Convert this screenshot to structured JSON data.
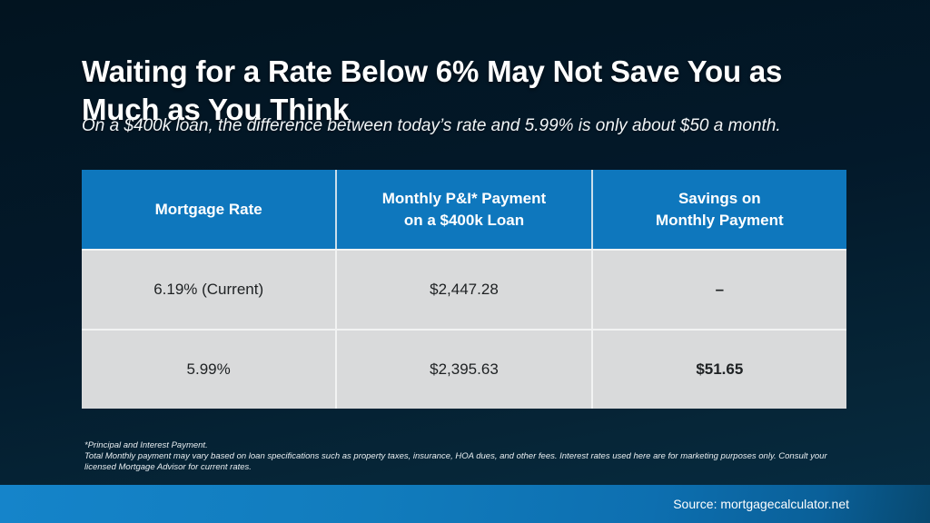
{
  "slide": {
    "title_line1": "Waiting for a Rate Below 6% May Not Save You as",
    "title_line2": "Much as You Think",
    "subtitle": "On a $400k loan, the difference between today’s rate and 5.99% is only about $50 a month."
  },
  "chart_data": {
    "type": "table",
    "title": "Waiting for a Rate Below 6% May Not Save You as Much as You Think",
    "columns": [
      "Mortgage Rate",
      "Monthly P&I* Payment on a $400k Loan",
      "Savings on Monthly Payment"
    ],
    "rows": [
      [
        "6.19% (Current)",
        "$2,447.28",
        "–"
      ],
      [
        "5.99%",
        "$2,395.63",
        "$51.65"
      ]
    ]
  },
  "table": {
    "headers": [
      "Mortgage Rate",
      "Monthly P&I* Payment\non a $400k Loan",
      "Savings on\nMonthly Payment"
    ],
    "rows": [
      [
        "6.19% (Current)",
        "$2,447.28",
        "–"
      ],
      [
        "5.99%",
        "$2,395.63",
        "$51.65"
      ]
    ]
  },
  "footnote": {
    "text": "*Principal and Interest Payment.\nTotal Monthly payment may vary based on loan specifications such as property taxes, insurance, HOA dues, and other fees. Interest rates used here are for marketing purposes only. Consult your licensed Mortgage Advisor for current rates."
  },
  "footer": {
    "source": "Source: mortgagecalculator.net"
  },
  "colors": {
    "background_top": "#021420",
    "background_bottom": "#072c42",
    "header_blue": "#0e77bd",
    "cell_gray": "#d9dadb",
    "footer_bar_blue": "#1584ca",
    "text_dark": "#1e2123",
    "text_white": "#ffffff"
  }
}
